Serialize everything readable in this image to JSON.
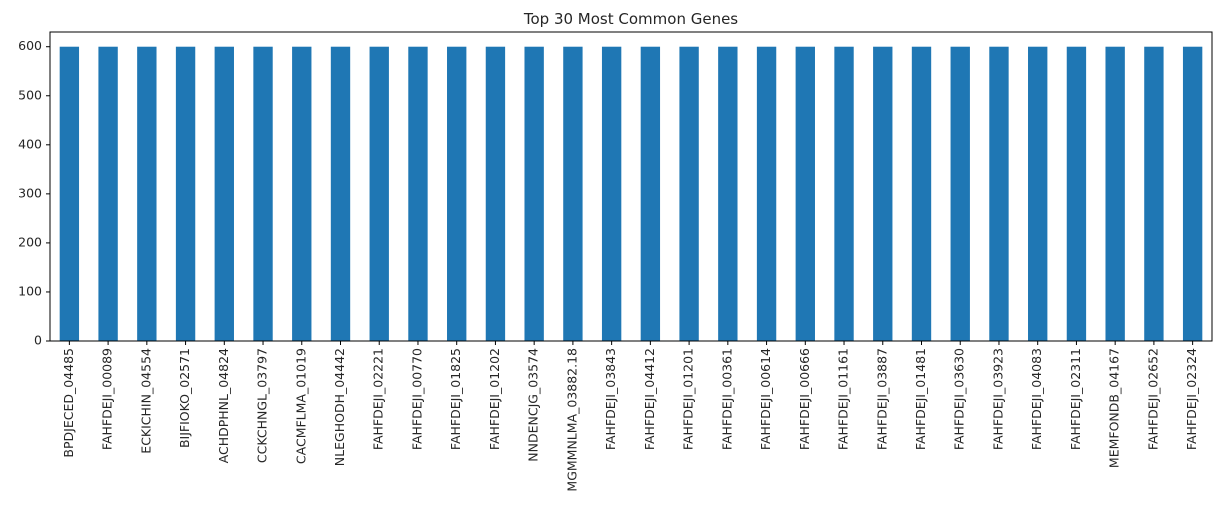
{
  "chart_data": {
    "type": "bar",
    "title": "Top 30 Most Common Genes",
    "xlabel": "",
    "ylabel": "",
    "categories": [
      "BPDJECED_04485",
      "FAHFDEJI_00089",
      "ECKICHIN_04554",
      "BIJFIOKO_02571",
      "ACHDPHNL_04824",
      "CCKCHNGL_03797",
      "CACMFLMA_01019",
      "NLEGHODH_04442",
      "FAHFDEJI_02221",
      "FAHFDEJI_00770",
      "FAHFDEJI_01825",
      "FAHFDEJI_01202",
      "NNDENCJG_03574",
      "MGMMNLMA_03882.18",
      "FAHFDEJI_03843",
      "FAHFDEJI_04412",
      "FAHFDEJI_01201",
      "FAHFDEJI_00361",
      "FAHFDEJI_00614",
      "FAHFDEJI_00666",
      "FAHFDEJI_01161",
      "FAHFDEJI_03887",
      "FAHFDEJI_01481",
      "FAHFDEJI_03630",
      "FAHFDEJI_03923",
      "FAHFDEJI_04083",
      "FAHFDEJI_02311",
      "MEMFONDB_04167",
      "FAHFDEJI_02652",
      "FAHFDEJI_02324"
    ],
    "values": [
      600,
      600,
      600,
      600,
      600,
      600,
      600,
      600,
      600,
      600,
      600,
      600,
      600,
      600,
      600,
      600,
      600,
      600,
      600,
      600,
      600,
      600,
      600,
      600,
      600,
      600,
      600,
      600,
      600,
      600
    ],
    "ylim": [
      0,
      630
    ],
    "yticks": [
      0,
      100,
      200,
      300,
      400,
      500,
      600
    ],
    "grid": false,
    "bar_color": "#1f77b4"
  }
}
